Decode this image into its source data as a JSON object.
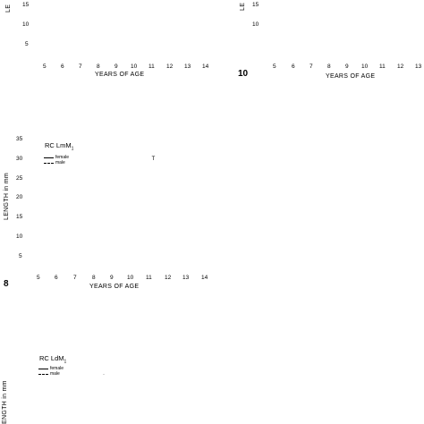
{
  "chart_data": [
    {
      "panel": "top-left",
      "type": "line",
      "title": "",
      "xlabel": "YEARS OF AGE",
      "ylabel": "LE",
      "x_ticks": [
        "5",
        "6",
        "7",
        "8",
        "9",
        "10",
        "11",
        "12",
        "13",
        "14"
      ],
      "y_ticks": [
        "15",
        "10",
        "5"
      ],
      "series": []
    },
    {
      "panel": "top-right",
      "type": "line",
      "title": "",
      "figure_number": "10",
      "xlabel": "YEARS OF AGE",
      "ylabel": "LE",
      "x_ticks": [
        "5",
        "6",
        "7",
        "8",
        "9",
        "10",
        "11",
        "12",
        "13"
      ],
      "y_ticks": [
        "15",
        "10"
      ],
      "series": []
    },
    {
      "panel": "middle-left",
      "type": "line",
      "title": "RC LmM",
      "title_subscript": "1",
      "figure_number": "8",
      "xlabel": "YEARS OF AGE",
      "ylabel": "LENGTH in mm",
      "x_ticks": [
        "5",
        "6",
        "7",
        "8",
        "9",
        "10",
        "11",
        "12",
        "13",
        "14"
      ],
      "y_ticks": [
        "35",
        "30",
        "25",
        "20",
        "15",
        "10",
        "5"
      ],
      "ylim": [
        0,
        35
      ],
      "legend": [
        "female",
        "male"
      ],
      "points": [
        {
          "x": 11,
          "y": 30
        }
      ]
    },
    {
      "panel": "bottom-left",
      "type": "line",
      "title": "RC LdM",
      "title_subscript": "1",
      "ylabel": "ENGTH in mm",
      "legend": [
        "female",
        "male"
      ],
      "points": []
    }
  ]
}
